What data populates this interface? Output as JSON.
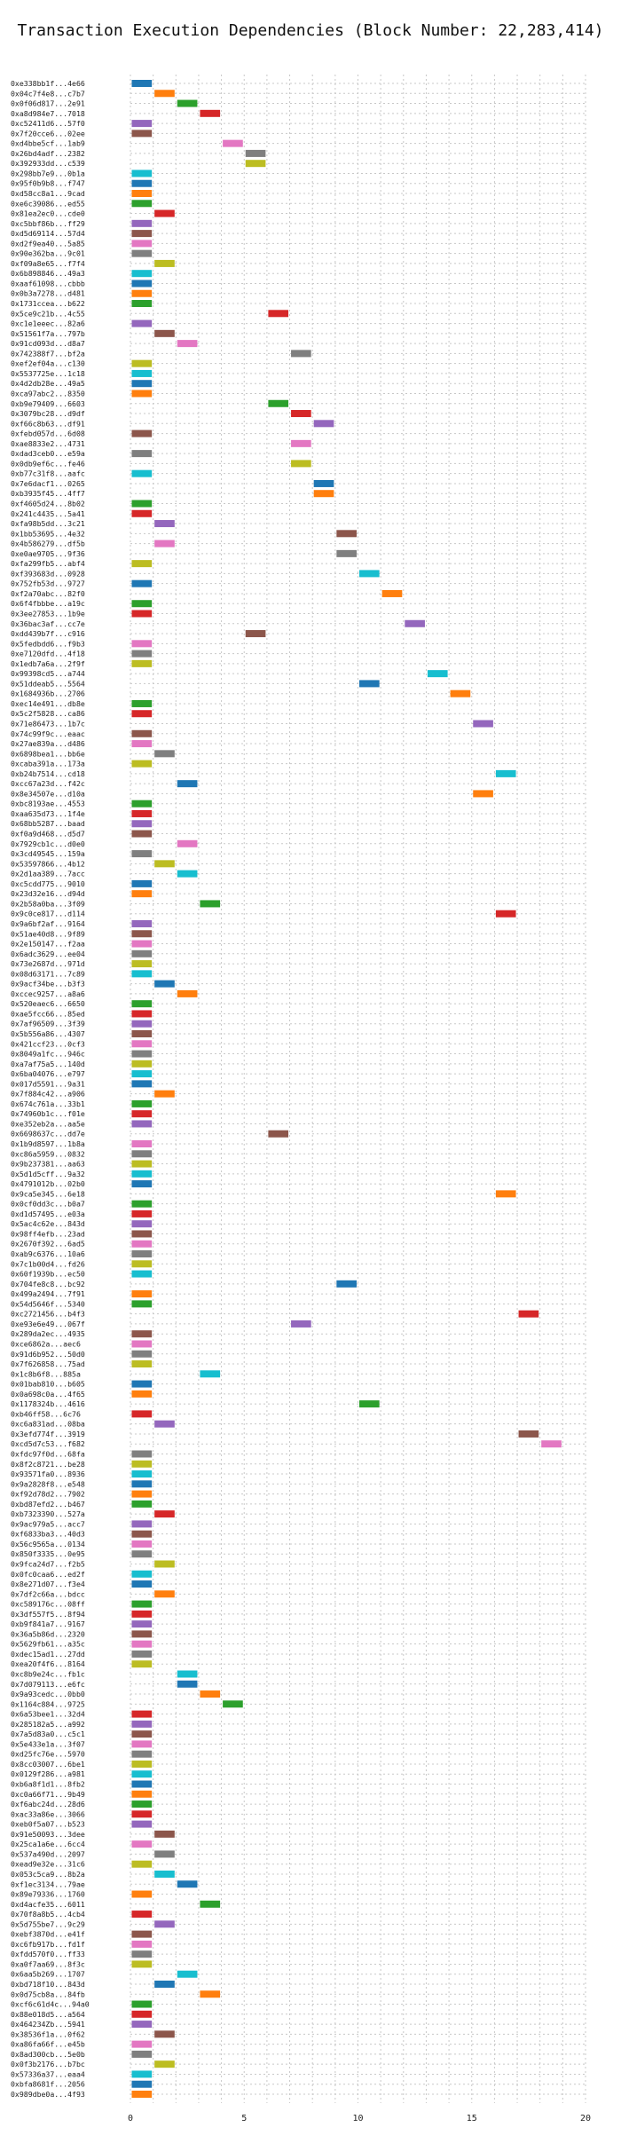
{
  "chart_data": {
    "type": "bar",
    "orientation": "horizontal",
    "title": "Transaction Execution Dependencies (Block Number: 22,283,414)",
    "xlabel": "",
    "ylabel": "",
    "xlim": [
      0,
      20
    ],
    "xticks": [
      0,
      5,
      10,
      15,
      20
    ],
    "grid": "dashed",
    "legend": "none",
    "palette": [
      "#1f77b4",
      "#ff7f0e",
      "#2ca02c",
      "#d62728",
      "#9467bd",
      "#8c564b",
      "#e377c2",
      "#7f7f7f",
      "#bcbd22",
      "#17becf"
    ],
    "bars": [
      {
        "tx": "0xe338bb1f...4e66",
        "start": 0,
        "end": 1
      },
      {
        "tx": "0x04c7f4e8...c7b7",
        "start": 1,
        "end": 2
      },
      {
        "tx": "0x0f06d817...2e91",
        "start": 2,
        "end": 3
      },
      {
        "tx": "0xa8d984e7...7018",
        "start": 3,
        "end": 4
      },
      {
        "tx": "0xc52411d6...57f0",
        "start": 0,
        "end": 1
      },
      {
        "tx": "0x7f20cce6...02ee",
        "start": 0,
        "end": 1
      },
      {
        "tx": "0xd4bbe5cf...1ab9",
        "start": 4,
        "end": 5
      },
      {
        "tx": "0x26bd4adf...2382",
        "start": 5,
        "end": 6
      },
      {
        "tx": "0x392933dd...c539",
        "start": 5,
        "end": 6
      },
      {
        "tx": "0x298bb7e9...0b1a",
        "start": 0,
        "end": 1
      },
      {
        "tx": "0x95f0b9b8...f747",
        "start": 0,
        "end": 1
      },
      {
        "tx": "0xd58cc8a1...9cad",
        "start": 0,
        "end": 1
      },
      {
        "tx": "0xe6c39086...ed55",
        "start": 0,
        "end": 1
      },
      {
        "tx": "0x81ea2ec0...cde0",
        "start": 1,
        "end": 2
      },
      {
        "tx": "0xc5bbf86b...ff29",
        "start": 0,
        "end": 1
      },
      {
        "tx": "0xd5d69114...57d4",
        "start": 0,
        "end": 1
      },
      {
        "tx": "0xd2f9ea40...5a85",
        "start": 0,
        "end": 1
      },
      {
        "tx": "0x90e362ba...9c01",
        "start": 0,
        "end": 1
      },
      {
        "tx": "0xf09a8e65...f7f4",
        "start": 1,
        "end": 2
      },
      {
        "tx": "0x6b898846...49a3",
        "start": 0,
        "end": 1
      },
      {
        "tx": "0xaaf61098...cbbb",
        "start": 0,
        "end": 1
      },
      {
        "tx": "0x0b3a7278...d481",
        "start": 0,
        "end": 1
      },
      {
        "tx": "0x1731ccea...b622",
        "start": 0,
        "end": 1
      },
      {
        "tx": "0x5ce9c21b...4c55",
        "start": 6,
        "end": 7
      },
      {
        "tx": "0xc1e1eeec...82a6",
        "start": 0,
        "end": 1
      },
      {
        "tx": "0x51561f7a...797b",
        "start": 1,
        "end": 2
      },
      {
        "tx": "0x91cd093d...d8a7",
        "start": 2,
        "end": 3
      },
      {
        "tx": "0x742388f7...bf2a",
        "start": 7,
        "end": 8
      },
      {
        "tx": "0xef2ef04a...c130",
        "start": 0,
        "end": 1
      },
      {
        "tx": "0x5537725e...1c18",
        "start": 0,
        "end": 1
      },
      {
        "tx": "0x4d2db28e...49a5",
        "start": 0,
        "end": 1
      },
      {
        "tx": "0xca97abc2...8350",
        "start": 0,
        "end": 1
      },
      {
        "tx": "0xb9e79409...6603",
        "start": 6,
        "end": 7
      },
      {
        "tx": "0x3079bc28...d9df",
        "start": 7,
        "end": 8
      },
      {
        "tx": "0xf66c8b63...df91",
        "start": 8,
        "end": 9
      },
      {
        "tx": "0xfebd057d...6d08",
        "start": 0,
        "end": 1
      },
      {
        "tx": "0xae8833e2...4731",
        "start": 7,
        "end": 8
      },
      {
        "tx": "0xdad3ceb0...e59a",
        "start": 0,
        "end": 1
      },
      {
        "tx": "0x0db9ef6c...fe46",
        "start": 7,
        "end": 8
      },
      {
        "tx": "0xb77c31f8...aafc",
        "start": 0,
        "end": 1
      },
      {
        "tx": "0x7e6dacf1...0265",
        "start": 8,
        "end": 9
      },
      {
        "tx": "0xb3935f45...4ff7",
        "start": 8,
        "end": 9
      },
      {
        "tx": "0xf4605d24...8b02",
        "start": 0,
        "end": 1
      },
      {
        "tx": "0x241c4435...5a41",
        "start": 0,
        "end": 1
      },
      {
        "tx": "0xfa98b5dd...3c21",
        "start": 1,
        "end": 2
      },
      {
        "tx": "0x1bb53695...4e32",
        "start": 9,
        "end": 10
      },
      {
        "tx": "0x4b586279...df5b",
        "start": 1,
        "end": 2
      },
      {
        "tx": "0xe0ae9705...9f36",
        "start": 9,
        "end": 10
      },
      {
        "tx": "0xfa299fb5...abf4",
        "start": 0,
        "end": 1
      },
      {
        "tx": "0xf393683d...0928",
        "start": 10,
        "end": 11
      },
      {
        "tx": "0x752fb53d...9727",
        "start": 0,
        "end": 1
      },
      {
        "tx": "0xf2a70abc...82f0",
        "start": 11,
        "end": 12
      },
      {
        "tx": "0x6f4fbbbe...a19c",
        "start": 0,
        "end": 1
      },
      {
        "tx": "0x3ee27853...1b9e",
        "start": 0,
        "end": 1
      },
      {
        "tx": "0x36bac3af...cc7e",
        "start": 12,
        "end": 13
      },
      {
        "tx": "0xdd439b7f...c916",
        "start": 5,
        "end": 6
      },
      {
        "tx": "0x5fedbdd6...f9b3",
        "start": 0,
        "end": 1
      },
      {
        "tx": "0xe7120dfd...4f18",
        "start": 0,
        "end": 1
      },
      {
        "tx": "0x1edb7a6a...2f9f",
        "start": 0,
        "end": 1
      },
      {
        "tx": "0x99398cd5...a744",
        "start": 13,
        "end": 14
      },
      {
        "tx": "0x51ddeab5...5564",
        "start": 10,
        "end": 11
      },
      {
        "tx": "0x1684936b...2706",
        "start": 14,
        "end": 15
      },
      {
        "tx": "0xec14e491...db8e",
        "start": 0,
        "end": 1
      },
      {
        "tx": "0x5c2f5828...ca86",
        "start": 0,
        "end": 1
      },
      {
        "tx": "0x71e86473...1b7c",
        "start": 15,
        "end": 16
      },
      {
        "tx": "0x74c99f9c...eaac",
        "start": 0,
        "end": 1
      },
      {
        "tx": "0x27ae839a...d486",
        "start": 0,
        "end": 1
      },
      {
        "tx": "0x6898bea1...bb6e",
        "start": 1,
        "end": 2
      },
      {
        "tx": "0xcaba391a...173a",
        "start": 0,
        "end": 1
      },
      {
        "tx": "0xb24b7514...cd18",
        "start": 16,
        "end": 17
      },
      {
        "tx": "0xcc67a23d...f42c",
        "start": 2,
        "end": 3
      },
      {
        "tx": "0x8e34507e...d10a",
        "start": 15,
        "end": 16
      },
      {
        "tx": "0xbc8193ae...4553",
        "start": 0,
        "end": 1
      },
      {
        "tx": "0xaa635d73...1f4e",
        "start": 0,
        "end": 1
      },
      {
        "tx": "0x68bb5287...baad",
        "start": 0,
        "end": 1
      },
      {
        "tx": "0xf0a9d468...d5d7",
        "start": 0,
        "end": 1
      },
      {
        "tx": "0x7929cb1c...d0e0",
        "start": 2,
        "end": 3
      },
      {
        "tx": "0x3cd49545...159a",
        "start": 0,
        "end": 1
      },
      {
        "tx": "0x53597866...4b12",
        "start": 1,
        "end": 2
      },
      {
        "tx": "0x2d1aa389...7acc",
        "start": 2,
        "end": 3
      },
      {
        "tx": "0xc5cdd775...9010",
        "start": 0,
        "end": 1
      },
      {
        "tx": "0x23d32e16...d94d",
        "start": 0,
        "end": 1
      },
      {
        "tx": "0x2b58a0ba...3f09",
        "start": 3,
        "end": 4
      },
      {
        "tx": "0x9c0ce817...d114",
        "start": 16,
        "end": 17
      },
      {
        "tx": "0x9a6bf2af...9164",
        "start": 0,
        "end": 1
      },
      {
        "tx": "0x51ae40d8...9f89",
        "start": 0,
        "end": 1
      },
      {
        "tx": "0x2e150147...f2aa",
        "start": 0,
        "end": 1
      },
      {
        "tx": "0x6adc3629...ee04",
        "start": 0,
        "end": 1
      },
      {
        "tx": "0x73e2687d...971d",
        "start": 0,
        "end": 1
      },
      {
        "tx": "0x08d63171...7c89",
        "start": 0,
        "end": 1
      },
      {
        "tx": "0x9acf34be...b3f3",
        "start": 1,
        "end": 2
      },
      {
        "tx": "0xccec9257...a8a6",
        "start": 2,
        "end": 3
      },
      {
        "tx": "0x520eaec6...6650",
        "start": 0,
        "end": 1
      },
      {
        "tx": "0xae5fcc66...85ed",
        "start": 0,
        "end": 1
      },
      {
        "tx": "0x7af96509...3f39",
        "start": 0,
        "end": 1
      },
      {
        "tx": "0x5b556a86...4307",
        "start": 0,
        "end": 1
      },
      {
        "tx": "0x421ccf23...0cf3",
        "start": 0,
        "end": 1
      },
      {
        "tx": "0x8049a1fc...946c",
        "start": 0,
        "end": 1
      },
      {
        "tx": "0xa7af75a5...140d",
        "start": 0,
        "end": 1
      },
      {
        "tx": "0x6ba04076...e797",
        "start": 0,
        "end": 1
      },
      {
        "tx": "0x017d5591...9a31",
        "start": 0,
        "end": 1
      },
      {
        "tx": "0x7f884c42...a906",
        "start": 1,
        "end": 2
      },
      {
        "tx": "0x674c761a...33b1",
        "start": 0,
        "end": 1
      },
      {
        "tx": "0x74960b1c...f01e",
        "start": 0,
        "end": 1
      },
      {
        "tx": "0xe352eb2a...aa5e",
        "start": 0,
        "end": 1
      },
      {
        "tx": "0x6698637c...dd7e",
        "start": 6,
        "end": 7
      },
      {
        "tx": "0x1b9d8597...1b8a",
        "start": 0,
        "end": 1
      },
      {
        "tx": "0xc86a5959...0832",
        "start": 0,
        "end": 1
      },
      {
        "tx": "0x9b237381...aa63",
        "start": 0,
        "end": 1
      },
      {
        "tx": "0x5d1d5cff...9a32",
        "start": 0,
        "end": 1
      },
      {
        "tx": "0x4791012b...02b0",
        "start": 0,
        "end": 1
      },
      {
        "tx": "0x9ca5e345...6e18",
        "start": 16,
        "end": 17
      },
      {
        "tx": "0x0cf0dd3c...b0a7",
        "start": 0,
        "end": 1
      },
      {
        "tx": "0xd1d57495...e03a",
        "start": 0,
        "end": 1
      },
      {
        "tx": "0x5ac4c62e...843d",
        "start": 0,
        "end": 1
      },
      {
        "tx": "0x98ff4efb...23ad",
        "start": 0,
        "end": 1
      },
      {
        "tx": "0x2670f392...6ad5",
        "start": 0,
        "end": 1
      },
      {
        "tx": "0xab9c6376...10a6",
        "start": 0,
        "end": 1
      },
      {
        "tx": "0x7c1b00d4...fd26",
        "start": 0,
        "end": 1
      },
      {
        "tx": "0x60f1939b...ec50",
        "start": 0,
        "end": 1
      },
      {
        "tx": "0x704fe8c8...bc92",
        "start": 9,
        "end": 10
      },
      {
        "tx": "0x499a2494...7f91",
        "start": 0,
        "end": 1
      },
      {
        "tx": "0x54d5646f...5340",
        "start": 0,
        "end": 1
      },
      {
        "tx": "0xc2721456...b4f3",
        "start": 17,
        "end": 18
      },
      {
        "tx": "0xe93e6e49...067f",
        "start": 7,
        "end": 8
      },
      {
        "tx": "0x289da2ec...4935",
        "start": 0,
        "end": 1
      },
      {
        "tx": "0xce6862a...aec6",
        "start": 0,
        "end": 1
      },
      {
        "tx": "0x91d6b952...50d0",
        "start": 0,
        "end": 1
      },
      {
        "tx": "0x7f626858...75ad",
        "start": 0,
        "end": 1
      },
      {
        "tx": "0x1c8b6f8...885a",
        "start": 3,
        "end": 4
      },
      {
        "tx": "0x01bab810...b605",
        "start": 0,
        "end": 1
      },
      {
        "tx": "0x0a698c0a...4f65",
        "start": 0,
        "end": 1
      },
      {
        "tx": "0x1178324b...4616",
        "start": 10,
        "end": 11
      },
      {
        "tx": "0xb46ff58...6c76",
        "start": 0,
        "end": 1
      },
      {
        "tx": "0xc6a831ad...08ba",
        "start": 1,
        "end": 2
      },
      {
        "tx": "0x3efd774f...3919",
        "start": 17,
        "end": 18
      },
      {
        "tx": "0xcd5d7c53...f682",
        "start": 18,
        "end": 19
      },
      {
        "tx": "0xfdc97f0d...68fa",
        "start": 0,
        "end": 1
      },
      {
        "tx": "0x8f2c8721...be28",
        "start": 0,
        "end": 1
      },
      {
        "tx": "0x93571fa0...8936",
        "start": 0,
        "end": 1
      },
      {
        "tx": "0x9a2828f8...e548",
        "start": 0,
        "end": 1
      },
      {
        "tx": "0xf92d78d2...7902",
        "start": 0,
        "end": 1
      },
      {
        "tx": "0xbd87efd2...b467",
        "start": 0,
        "end": 1
      },
      {
        "tx": "0xb7323390...527a",
        "start": 1,
        "end": 2
      },
      {
        "tx": "0x9ac979a5...acc7",
        "start": 0,
        "end": 1
      },
      {
        "tx": "0xf6833ba3...40d3",
        "start": 0,
        "end": 1
      },
      {
        "tx": "0x56c9565a...0134",
        "start": 0,
        "end": 1
      },
      {
        "tx": "0x850f3335...0e95",
        "start": 0,
        "end": 1
      },
      {
        "tx": "0x9fca24d7...f2b5",
        "start": 1,
        "end": 2
      },
      {
        "tx": "0x0fc0caa6...ed2f",
        "start": 0,
        "end": 1
      },
      {
        "tx": "0x8e271d07...f3e4",
        "start": 0,
        "end": 1
      },
      {
        "tx": "0x7df2c66a...bdcc",
        "start": 1,
        "end": 2
      },
      {
        "tx": "0xc589176c...08ff",
        "start": 0,
        "end": 1
      },
      {
        "tx": "0x3df557f5...8f94",
        "start": 0,
        "end": 1
      },
      {
        "tx": "0xb9f841a7...9167",
        "start": 0,
        "end": 1
      },
      {
        "tx": "0x36a5b86d...2320",
        "start": 0,
        "end": 1
      },
      {
        "tx": "0x5629fb61...a35c",
        "start": 0,
        "end": 1
      },
      {
        "tx": "0xdec15ad1...27dd",
        "start": 0,
        "end": 1
      },
      {
        "tx": "0xea20f4f6...8164",
        "start": 0,
        "end": 1
      },
      {
        "tx": "0xc8b9e24c...fb1c",
        "start": 2,
        "end": 3
      },
      {
        "tx": "0x7d079113...e6fc",
        "start": 2,
        "end": 3
      },
      {
        "tx": "0x9a93cedc...0bb0",
        "start": 3,
        "end": 4
      },
      {
        "tx": "0x1164c884...9725",
        "start": 4,
        "end": 5
      },
      {
        "tx": "0x6a53bee1...32d4",
        "start": 0,
        "end": 1
      },
      {
        "tx": "0x285182a5...a992",
        "start": 0,
        "end": 1
      },
      {
        "tx": "0x7a5d83a0...c5c1",
        "start": 0,
        "end": 1
      },
      {
        "tx": "0x5e433e1a...3f07",
        "start": 0,
        "end": 1
      },
      {
        "tx": "0xd25fc76e...5970",
        "start": 0,
        "end": 1
      },
      {
        "tx": "0x8cc03007...6be1",
        "start": 0,
        "end": 1
      },
      {
        "tx": "0x0129f286...a981",
        "start": 0,
        "end": 1
      },
      {
        "tx": "0xb6a8f1d1...8fb2",
        "start": 0,
        "end": 1
      },
      {
        "tx": "0xc0a66f71...9b49",
        "start": 0,
        "end": 1
      },
      {
        "tx": "0xf6abc24d...28d6",
        "start": 0,
        "end": 1
      },
      {
        "tx": "0xac33a86e...3066",
        "start": 0,
        "end": 1
      },
      {
        "tx": "0xeb0f5a07...b523",
        "start": 0,
        "end": 1
      },
      {
        "tx": "0x91e50093...3dee",
        "start": 1,
        "end": 2
      },
      {
        "tx": "0x25ca1a6e...6cc4",
        "start": 0,
        "end": 1
      },
      {
        "tx": "0x537a490d...2097",
        "start": 1,
        "end": 2
      },
      {
        "tx": "0xead9e32e...31c6",
        "start": 0,
        "end": 1
      },
      {
        "tx": "0x053c5ca9...8b2a",
        "start": 1,
        "end": 2
      },
      {
        "tx": "0xf1ec3134...79ae",
        "start": 2,
        "end": 3
      },
      {
        "tx": "0x89e79336...1760",
        "start": 0,
        "end": 1
      },
      {
        "tx": "0xd4acfe35...6011",
        "start": 3,
        "end": 4
      },
      {
        "tx": "0x70f8a8b5...4cb4",
        "start": 0,
        "end": 1
      },
      {
        "tx": "0x5d755be7...9c29",
        "start": 1,
        "end": 2
      },
      {
        "tx": "0xebf3870d...e41f",
        "start": 0,
        "end": 1
      },
      {
        "tx": "0xc6fb917b...fd1f",
        "start": 0,
        "end": 1
      },
      {
        "tx": "0xfdd570f0...ff33",
        "start": 0,
        "end": 1
      },
      {
        "tx": "0xa0f7aa69...8f3c",
        "start": 0,
        "end": 1
      },
      {
        "tx": "0x6aa5b269...1707",
        "start": 2,
        "end": 3
      },
      {
        "tx": "0xbd718f10...843d",
        "start": 1,
        "end": 2
      },
      {
        "tx": "0x0d75cb8a...84fb",
        "start": 3,
        "end": 4
      },
      {
        "tx": "0xcf6c61d4c...94a0",
        "start": 0,
        "end": 1
      },
      {
        "tx": "0x88e018d5...a564",
        "start": 0,
        "end": 1
      },
      {
        "tx": "0x464234Zb...5941",
        "start": 0,
        "end": 1
      },
      {
        "tx": "0x38536f1a...0f62",
        "start": 1,
        "end": 2
      },
      {
        "tx": "0xa86fa66f...e45b",
        "start": 0,
        "end": 1
      },
      {
        "tx": "0x8ad300cb...5e0b",
        "start": 0,
        "end": 1
      },
      {
        "tx": "0x0f3b2176...b7bc",
        "start": 1,
        "end": 2
      },
      {
        "tx": "0x57336a37...eaa4",
        "start": 0,
        "end": 1
      },
      {
        "tx": "0xbfa8681f...2056",
        "start": 0,
        "end": 1
      },
      {
        "tx": "0x989dbe0a...4f93",
        "start": 0,
        "end": 1
      }
    ]
  }
}
